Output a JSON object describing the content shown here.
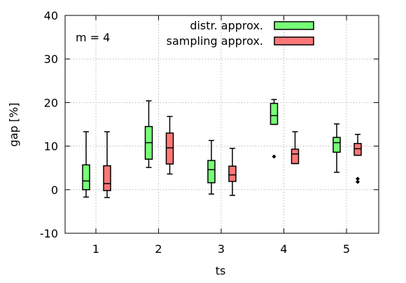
{
  "chart_data": {
    "type": "box",
    "annotation": "m = 4",
    "xlabel": "ts",
    "ylabel": "gap [%]",
    "categories": [
      "1",
      "2",
      "3",
      "4",
      "5"
    ],
    "ylim": [
      -10,
      40
    ],
    "yticks": [
      -10,
      0,
      10,
      20,
      30,
      40
    ],
    "grid": true,
    "legend_position": "top-right",
    "series": [
      {
        "name": "distr. approx.",
        "color": "#77ff77",
        "boxes": [
          {
            "min": -1.7,
            "q1": 0.0,
            "median": 2.0,
            "q3": 5.7,
            "max": 13.3,
            "outliers": []
          },
          {
            "min": 5.1,
            "q1": 7.0,
            "median": 10.8,
            "q3": 14.5,
            "max": 20.4,
            "outliers": []
          },
          {
            "min": -1.0,
            "q1": 1.6,
            "median": 4.6,
            "q3": 6.7,
            "max": 11.3,
            "outliers": []
          },
          {
            "min": 15.0,
            "q1": 15.0,
            "median": 17.0,
            "q3": 19.8,
            "max": 20.7,
            "outliers": [
              7.6
            ]
          },
          {
            "min": 4.0,
            "q1": 8.6,
            "median": 10.8,
            "q3": 12.0,
            "max": 15.1,
            "outliers": []
          }
        ]
      },
      {
        "name": "sampling approx.",
        "color": "#ff7777",
        "boxes": [
          {
            "min": -1.8,
            "q1": -0.2,
            "median": 1.4,
            "q3": 5.5,
            "max": 13.3,
            "outliers": []
          },
          {
            "min": 3.6,
            "q1": 5.9,
            "median": 9.6,
            "q3": 13.0,
            "max": 16.8,
            "outliers": []
          },
          {
            "min": -1.3,
            "q1": 1.9,
            "median": 3.4,
            "q3": 5.4,
            "max": 9.5,
            "outliers": []
          },
          {
            "min": 6.0,
            "q1": 6.0,
            "median": 8.2,
            "q3": 9.3,
            "max": 13.3,
            "outliers": []
          },
          {
            "min": 7.9,
            "q1": 7.9,
            "median": 9.4,
            "q3": 10.6,
            "max": 12.7,
            "outliers": [
              1.8,
              2.5
            ]
          }
        ]
      }
    ]
  }
}
